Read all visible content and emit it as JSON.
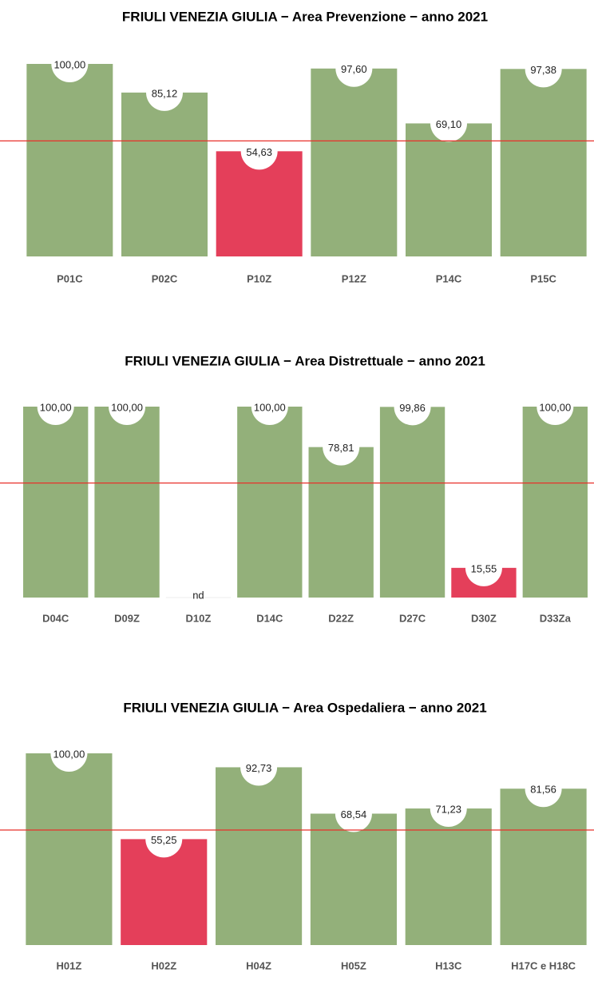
{
  "chart_data": [
    {
      "type": "bar",
      "title": "FRIULI VENEZIA GIULIA  − Area Prevenzione − anno 2021",
      "categories": [
        "P01C",
        "P02C",
        "P10Z",
        "P12Z",
        "P14C",
        "P15C"
      ],
      "values": [
        100.0,
        85.12,
        54.63,
        97.6,
        69.1,
        97.38
      ],
      "value_labels": [
        "100,00",
        "85,12",
        "54,63",
        "97,60",
        "69,10",
        "97,38"
      ],
      "color": "#93b07a",
      "below_color": "#e43f5a",
      "reference_line": 60,
      "reference_color": "#e8302a",
      "ylim": [
        0,
        100
      ]
    },
    {
      "type": "bar",
      "title": "FRIULI VENEZIA GIULIA  − Area Distrettuale − anno 2021",
      "categories": [
        "D04C",
        "D09Z",
        "D10Z",
        "D14C",
        "D22Z",
        "D27C",
        "D30Z",
        "D33Za"
      ],
      "values": [
        100.0,
        100.0,
        null,
        100.0,
        78.81,
        99.86,
        15.55,
        100.0
      ],
      "value_labels": [
        "100,00",
        "100,00",
        "nd",
        "100,00",
        "78,81",
        "99,86",
        "15,55",
        "100,00"
      ],
      "color": "#93b07a",
      "below_color": "#e43f5a",
      "reference_line": 60,
      "reference_color": "#e8302a",
      "ylim": [
        0,
        100
      ]
    },
    {
      "type": "bar",
      "title": "FRIULI VENEZIA GIULIA  − Area Ospedaliera − anno 2021",
      "categories": [
        "H01Z",
        "H02Z",
        "H04Z",
        "H05Z",
        "H13C",
        "H17C e H18C"
      ],
      "values": [
        100.0,
        55.25,
        92.73,
        68.54,
        71.23,
        81.56
      ],
      "value_labels": [
        "100,00",
        "55,25",
        "92,73",
        "68,54",
        "71,23",
        "81,56"
      ],
      "color": "#93b07a",
      "below_color": "#e43f5a",
      "reference_line": 60,
      "reference_color": "#e8302a",
      "ylim": [
        0,
        100
      ]
    }
  ]
}
